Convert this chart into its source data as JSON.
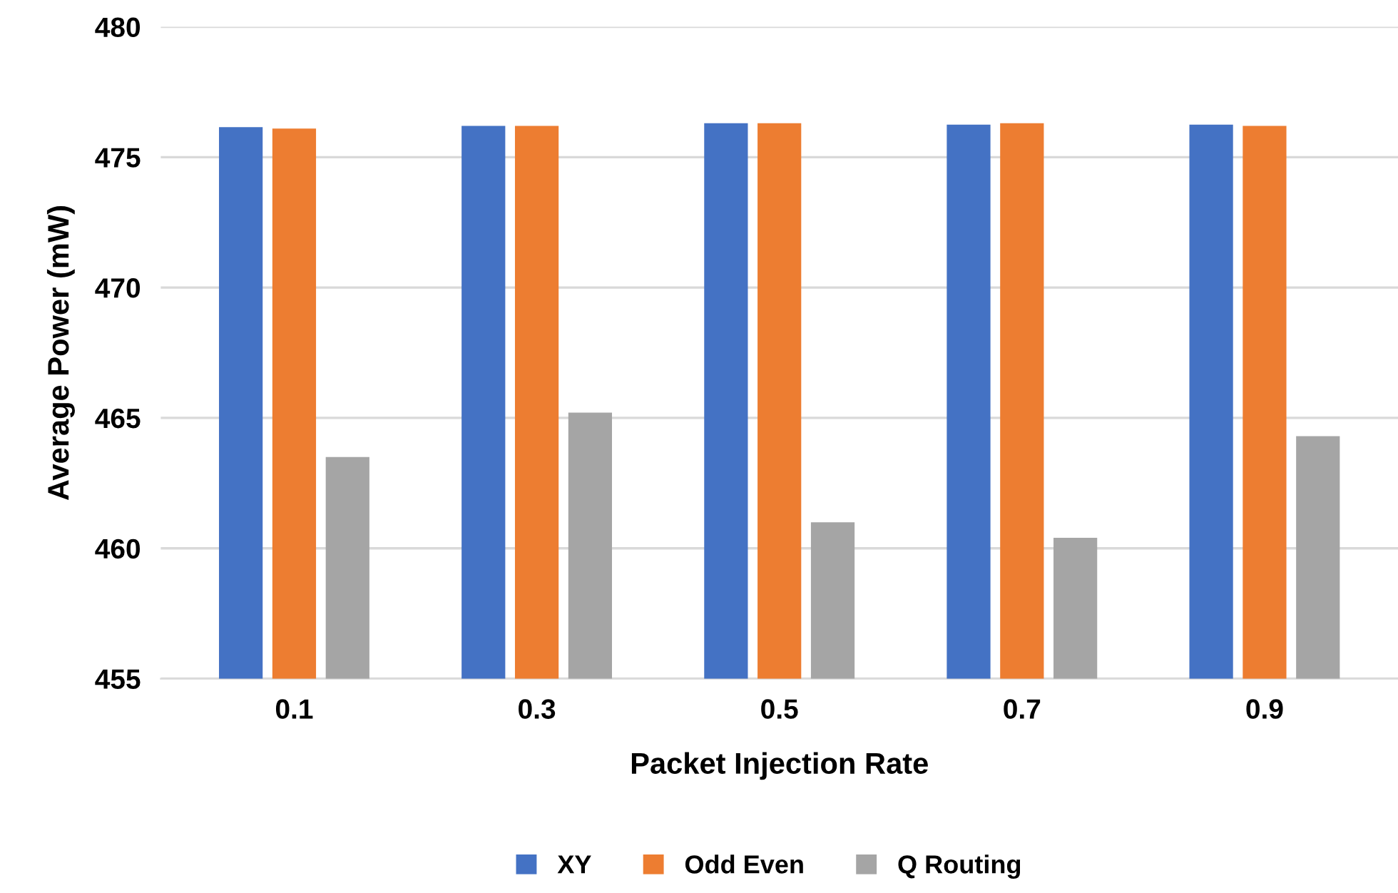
{
  "chart_data": {
    "type": "bar",
    "xlabel": "Packet Injection Rate",
    "ylabel": "Average Power (mW)",
    "categories": [
      "0.1",
      "0.3",
      "0.5",
      "0.7",
      "0.9"
    ],
    "series": [
      {
        "name": "XY",
        "color": "#4472c4",
        "values": [
          476.15,
          476.2,
          476.3,
          476.25,
          476.25
        ]
      },
      {
        "name": "Odd Even",
        "color": "#ed7d31",
        "values": [
          476.1,
          476.2,
          476.3,
          476.3,
          476.2
        ]
      },
      {
        "name": "Q Routing",
        "color": "#a5a5a5",
        "values": [
          463.5,
          465.2,
          461.0,
          460.4,
          464.3
        ]
      }
    ],
    "ylim": [
      455,
      480
    ],
    "yticks": [
      455,
      460,
      465,
      470,
      475,
      480
    ],
    "grid": "y",
    "legend": "bottom"
  }
}
